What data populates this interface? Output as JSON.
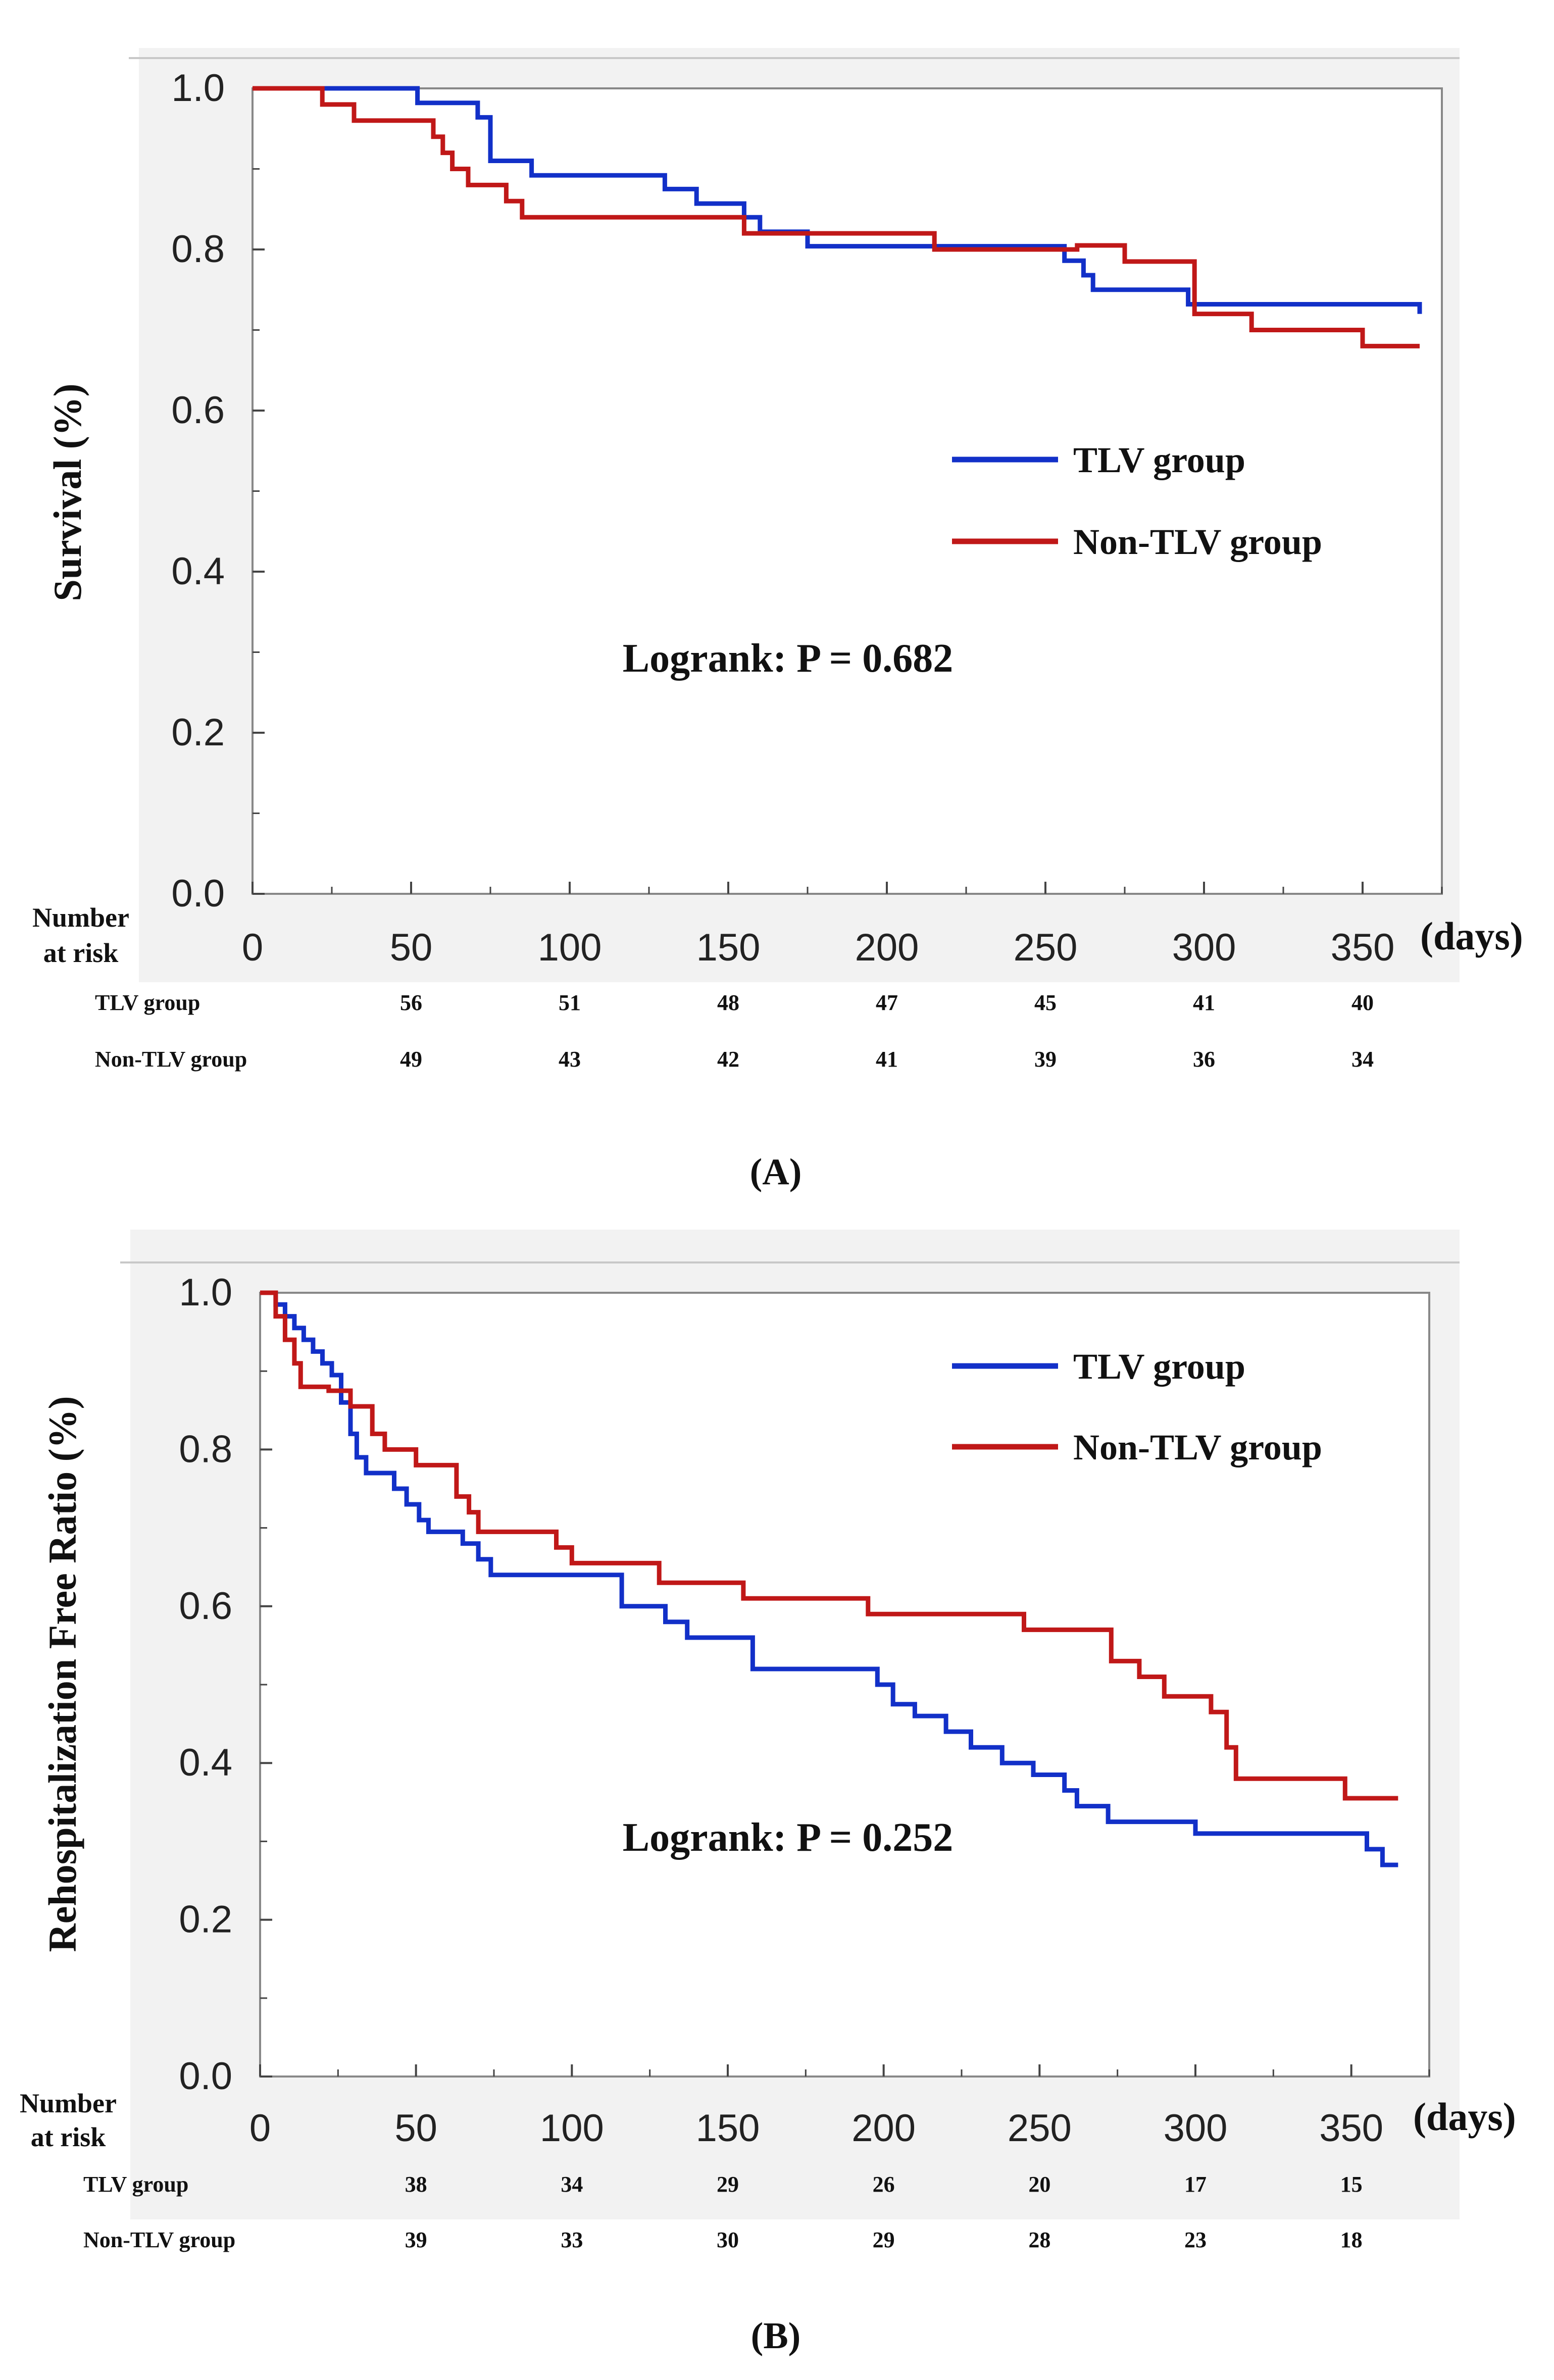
{
  "colors": {
    "tlv": "#1230c8",
    "non_tlv": "#c01818",
    "plot_bg": "#f2f2f2",
    "axis": "#888888"
  },
  "axis_units": "(days)",
  "risk_header": [
    "Number",
    "at risk"
  ],
  "chart_data": [
    {
      "type": "line",
      "panel_label": "(A)",
      "ylabel": "Survival (%)",
      "xlabel": "(days)",
      "xlim": [
        0,
        375
      ],
      "ylim": [
        0,
        1
      ],
      "x_ticks": [
        0,
        50,
        100,
        150,
        200,
        250,
        300,
        350
      ],
      "y_ticks": [
        "0.0",
        "0.2",
        "0.4",
        "0.6",
        "0.8",
        "1.0"
      ],
      "annotation": "Logrank: P = 0.682",
      "legend_position": "right-middle",
      "series": [
        {
          "name": "TLV group",
          "color_key": "tlv",
          "points": [
            [
              0,
              1.0
            ],
            [
              52,
              1.0
            ],
            [
              52,
              0.982
            ],
            [
              63,
              0.982
            ],
            [
              63,
              0.982
            ],
            [
              71,
              0.982
            ],
            [
              71,
              0.964
            ],
            [
              75,
              0.964
            ],
            [
              75,
              0.91
            ],
            [
              88,
              0.91
            ],
            [
              88,
              0.892
            ],
            [
              130,
              0.892
            ],
            [
              130,
              0.875
            ],
            [
              140,
              0.875
            ],
            [
              140,
              0.857
            ],
            [
              155,
              0.857
            ],
            [
              155,
              0.84
            ],
            [
              160,
              0.84
            ],
            [
              160,
              0.822
            ],
            [
              175,
              0.822
            ],
            [
              175,
              0.804
            ],
            [
              256,
              0.804
            ],
            [
              256,
              0.786
            ],
            [
              262,
              0.786
            ],
            [
              262,
              0.768
            ],
            [
              265,
              0.768
            ],
            [
              265,
              0.75
            ],
            [
              295,
              0.75
            ],
            [
              295,
              0.732
            ],
            [
              368,
              0.732
            ],
            [
              368,
              0.72
            ]
          ]
        },
        {
          "name": "Non-TLV group",
          "color_key": "non_tlv",
          "points": [
            [
              0,
              1.0
            ],
            [
              22,
              1.0
            ],
            [
              22,
              0.98
            ],
            [
              32,
              0.98
            ],
            [
              32,
              0.96
            ],
            [
              57,
              0.96
            ],
            [
              57,
              0.94
            ],
            [
              60,
              0.94
            ],
            [
              60,
              0.92
            ],
            [
              63,
              0.92
            ],
            [
              63,
              0.9
            ],
            [
              68,
              0.9
            ],
            [
              68,
              0.88
            ],
            [
              80,
              0.88
            ],
            [
              80,
              0.86
            ],
            [
              85,
              0.86
            ],
            [
              85,
              0.84
            ],
            [
              155,
              0.84
            ],
            [
              155,
              0.82
            ],
            [
              172,
              0.82
            ],
            [
              172,
              0.82
            ],
            [
              215,
              0.82
            ],
            [
              215,
              0.8
            ],
            [
              260,
              0.8
            ],
            [
              260,
              0.805
            ],
            [
              275,
              0.805
            ],
            [
              275,
              0.785
            ],
            [
              297,
              0.785
            ],
            [
              297,
              0.72
            ],
            [
              315,
              0.72
            ],
            [
              315,
              0.7
            ],
            [
              350,
              0.7
            ],
            [
              350,
              0.68
            ],
            [
              368,
              0.68
            ]
          ]
        }
      ],
      "risk_table": {
        "x": [
          50,
          100,
          150,
          200,
          250,
          300,
          350
        ],
        "rows": [
          {
            "label": "TLV  group",
            "values": [
              "56",
              "51",
              "48",
              "47",
              "45",
              "41",
              "40"
            ]
          },
          {
            "label": "Non-TLV  group",
            "values": [
              "49",
              "43",
              "42",
              "41",
              "39",
              "36",
              "34"
            ]
          }
        ]
      }
    },
    {
      "type": "line",
      "panel_label": "(B)",
      "ylabel": "Rehospitalization Free Ratio (%)",
      "xlabel": "(days)",
      "xlim": [
        0,
        375
      ],
      "ylim": [
        0,
        1
      ],
      "x_ticks": [
        0,
        50,
        100,
        150,
        200,
        250,
        300,
        350
      ],
      "y_ticks": [
        "0.0",
        "0.2",
        "0.4",
        "0.6",
        "0.8",
        "1.0"
      ],
      "annotation": "Logrank: P = 0.252",
      "legend_position": "top-right",
      "series": [
        {
          "name": "TLV group",
          "color_key": "tlv",
          "points": [
            [
              0,
              1.0
            ],
            [
              5,
              1.0
            ],
            [
              5,
              0.985
            ],
            [
              8,
              0.985
            ],
            [
              8,
              0.97
            ],
            [
              11,
              0.97
            ],
            [
              11,
              0.955
            ],
            [
              14,
              0.955
            ],
            [
              14,
              0.94
            ],
            [
              17,
              0.94
            ],
            [
              17,
              0.925
            ],
            [
              20,
              0.925
            ],
            [
              20,
              0.91
            ],
            [
              23,
              0.91
            ],
            [
              23,
              0.895
            ],
            [
              26,
              0.895
            ],
            [
              26,
              0.86
            ],
            [
              29,
              0.86
            ],
            [
              29,
              0.82
            ],
            [
              31,
              0.82
            ],
            [
              31,
              0.79
            ],
            [
              34,
              0.79
            ],
            [
              34,
              0.77
            ],
            [
              43,
              0.77
            ],
            [
              43,
              0.75
            ],
            [
              47,
              0.75
            ],
            [
              47,
              0.73
            ],
            [
              51,
              0.73
            ],
            [
              51,
              0.71
            ],
            [
              54,
              0.71
            ],
            [
              54,
              0.695
            ],
            [
              65,
              0.695
            ],
            [
              65,
              0.68
            ],
            [
              70,
              0.68
            ],
            [
              70,
              0.66
            ],
            [
              74,
              0.66
            ],
            [
              74,
              0.64
            ],
            [
              116,
              0.64
            ],
            [
              116,
              0.6
            ],
            [
              130,
              0.6
            ],
            [
              130,
              0.58
            ],
            [
              137,
              0.58
            ],
            [
              137,
              0.56
            ],
            [
              158,
              0.56
            ],
            [
              158,
              0.52
            ],
            [
              198,
              0.52
            ],
            [
              198,
              0.5
            ],
            [
              203,
              0.5
            ],
            [
              203,
              0.475
            ],
            [
              210,
              0.475
            ],
            [
              210,
              0.46
            ],
            [
              220,
              0.46
            ],
            [
              220,
              0.44
            ],
            [
              228,
              0.44
            ],
            [
              228,
              0.42
            ],
            [
              238,
              0.42
            ],
            [
              238,
              0.4
            ],
            [
              248,
              0.4
            ],
            [
              248,
              0.385
            ],
            [
              258,
              0.385
            ],
            [
              258,
              0.365
            ],
            [
              262,
              0.365
            ],
            [
              262,
              0.345
            ],
            [
              272,
              0.345
            ],
            [
              272,
              0.325
            ],
            [
              300,
              0.325
            ],
            [
              300,
              0.31
            ],
            [
              355,
              0.31
            ],
            [
              355,
              0.29
            ],
            [
              360,
              0.29
            ],
            [
              360,
              0.27
            ],
            [
              365,
              0.27
            ]
          ]
        },
        {
          "name": "Non-TLV group",
          "color_key": "non_tlv",
          "points": [
            [
              0,
              1.0
            ],
            [
              5,
              1.0
            ],
            [
              5,
              0.97
            ],
            [
              8,
              0.97
            ],
            [
              8,
              0.94
            ],
            [
              11,
              0.94
            ],
            [
              11,
              0.91
            ],
            [
              13,
              0.91
            ],
            [
              13,
              0.88
            ],
            [
              22,
              0.88
            ],
            [
              22,
              0.875
            ],
            [
              29,
              0.875
            ],
            [
              29,
              0.855
            ],
            [
              36,
              0.855
            ],
            [
              36,
              0.82
            ],
            [
              40,
              0.82
            ],
            [
              40,
              0.8
            ],
            [
              50,
              0.8
            ],
            [
              50,
              0.78
            ],
            [
              63,
              0.78
            ],
            [
              63,
              0.74
            ],
            [
              67,
              0.74
            ],
            [
              67,
              0.72
            ],
            [
              70,
              0.72
            ],
            [
              70,
              0.695
            ],
            [
              95,
              0.695
            ],
            [
              95,
              0.675
            ],
            [
              100,
              0.675
            ],
            [
              100,
              0.655
            ],
            [
              128,
              0.655
            ],
            [
              128,
              0.63
            ],
            [
              155,
              0.63
            ],
            [
              155,
              0.61
            ],
            [
              195,
              0.61
            ],
            [
              195,
              0.59
            ],
            [
              245,
              0.59
            ],
            [
              245,
              0.57
            ],
            [
              273,
              0.57
            ],
            [
              273,
              0.53
            ],
            [
              282,
              0.53
            ],
            [
              282,
              0.51
            ],
            [
              290,
              0.51
            ],
            [
              290,
              0.485
            ],
            [
              305,
              0.485
            ],
            [
              305,
              0.465
            ],
            [
              310,
              0.465
            ],
            [
              310,
              0.42
            ],
            [
              313,
              0.42
            ],
            [
              313,
              0.38
            ],
            [
              348,
              0.38
            ],
            [
              348,
              0.355
            ],
            [
              365,
              0.355
            ]
          ]
        }
      ],
      "risk_table": {
        "x": [
          50,
          100,
          150,
          200,
          250,
          300,
          350
        ],
        "rows": [
          {
            "label": "TLV  group",
            "values": [
              "38",
              "34",
              "29",
              "26",
              "20",
              "17",
              "15"
            ]
          },
          {
            "label": "Non-TLV  group",
            "values": [
              "39",
              "33",
              "30",
              "29",
              "28",
              "23",
              "18"
            ]
          }
        ]
      }
    }
  ]
}
